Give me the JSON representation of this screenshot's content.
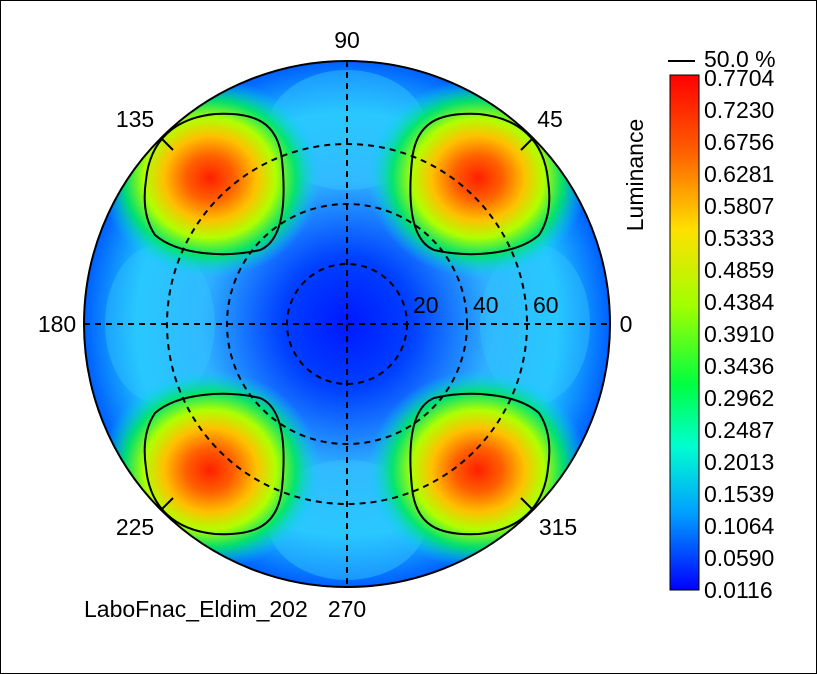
{
  "chart_data": {
    "type": "heatmap",
    "projection": "polar",
    "azimuth_labels": [
      "90",
      "45",
      "0",
      "315",
      "270",
      "225",
      "180",
      "135"
    ],
    "radial_labels": [
      "20",
      "40",
      "60"
    ],
    "colorbar": {
      "label": "Luminance",
      "marker_label": "50.0 %",
      "ticks": [
        "0.7704",
        "0.7230",
        "0.6756",
        "0.6281",
        "0.5807",
        "0.5333",
        "0.4859",
        "0.4384",
        "0.3910",
        "0.3436",
        "0.2962",
        "0.2487",
        "0.2013",
        "0.1539",
        "0.1064",
        "0.0590",
        "0.0116"
      ],
      "min": 0.0116,
      "max": 0.7704
    },
    "peaks": [
      {
        "azimuth": 45,
        "value": 0.74
      },
      {
        "azimuth": 135,
        "value": 0.74
      },
      {
        "azimuth": 225,
        "value": 0.74
      },
      {
        "azimuth": 315,
        "value": 0.77
      }
    ],
    "contour_level_percent": 50.0,
    "colors": {
      "low": "#0000ff",
      "mid": "#00ff00",
      "high": "#ff0000"
    }
  },
  "footer": {
    "source_text": "LaboFnac_Eldim_202"
  }
}
